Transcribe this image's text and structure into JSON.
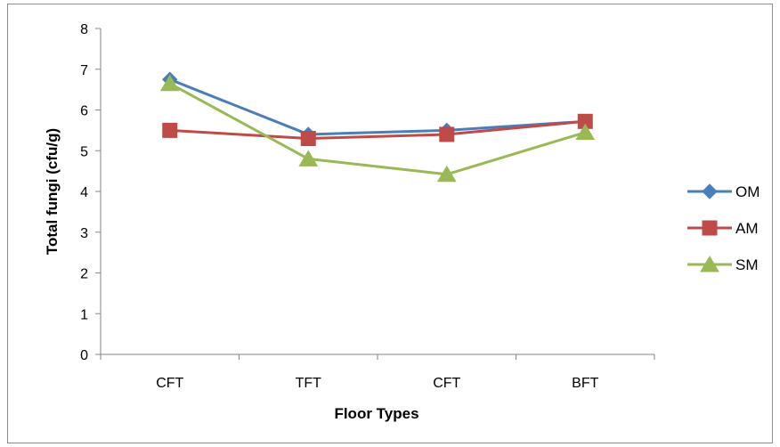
{
  "chart_data": {
    "type": "line",
    "title": "",
    "xlabel": "Floor Types",
    "ylabel": "Total fungi (cfu/g)",
    "categories": [
      "CFT",
      "TFT",
      "CFT",
      "BFT"
    ],
    "ylim": [
      0,
      8
    ],
    "yticks": [
      "0",
      "1",
      "2",
      "3",
      "4",
      "5",
      "6",
      "7",
      "8"
    ],
    "grid": false,
    "legend": "right",
    "series": [
      {
        "name": "OM",
        "values": [
          6.75,
          5.4,
          5.5,
          5.72
        ],
        "color": "#4a7ebb",
        "marker": "diamond"
      },
      {
        "name": "AM",
        "values": [
          5.5,
          5.3,
          5.4,
          5.72
        ],
        "color": "#be4b48",
        "marker": "square"
      },
      {
        "name": "SM",
        "values": [
          6.65,
          4.8,
          4.42,
          5.45
        ],
        "color": "#98b954",
        "marker": "triangle"
      }
    ]
  }
}
